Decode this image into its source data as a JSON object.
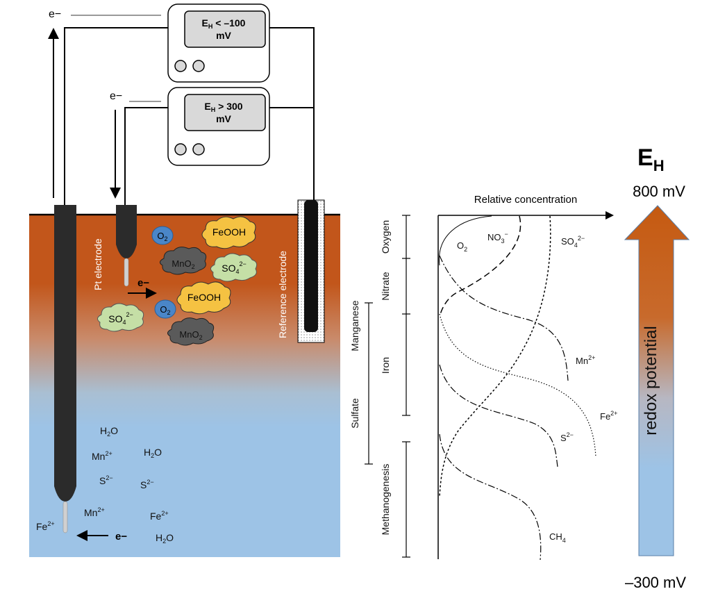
{
  "meters": {
    "top": {
      "symbol": "E",
      "subscript": "H",
      "relation": "< –100",
      "unit": "mV"
    },
    "bottom": {
      "symbol": "E",
      "subscript": "H",
      "relation": "> 300",
      "unit": "mV"
    }
  },
  "electron_label": "e−",
  "electrode_labels": {
    "pt": "Pt electrode",
    "reference": "Reference electrode"
  },
  "species_clouds": {
    "o2_a": {
      "base": "O",
      "sub": "2",
      "sup": "",
      "color": "#4a86c8"
    },
    "feooh_a": {
      "base": "FeOOH",
      "sub": "",
      "sup": "",
      "color": "#f5c242"
    },
    "mno2_a": {
      "base": "MnO",
      "sub": "2",
      "sup": "",
      "color": "#5a5a5a"
    },
    "so4_a": {
      "base": "SO",
      "sub": "4",
      "sup": "2−",
      "color": "#c5dfa6"
    },
    "o2_b": {
      "base": "O",
      "sub": "2",
      "sup": "",
      "color": "#4a86c8"
    },
    "feooh_b": {
      "base": "FeOOH",
      "sub": "",
      "sup": "",
      "color": "#f5c242"
    },
    "so4_b": {
      "base": "SO",
      "sub": "4",
      "sup": "2−",
      "color": "#c5dfa6"
    },
    "mno2_b": {
      "base": "MnO",
      "sub": "2",
      "sup": "",
      "color": "#5a5a5a"
    }
  },
  "water_species": {
    "h2o_1": {
      "base": "H",
      "sub": "2",
      "rest": "O"
    },
    "mn_1": {
      "base": "Mn",
      "sup": "2+"
    },
    "h2o_2": {
      "base": "H",
      "sub": "2",
      "rest": "O"
    },
    "s_1": {
      "base": "S",
      "sup": "2−"
    },
    "s_2": {
      "base": "S",
      "sup": "2−"
    },
    "mn_2": {
      "base": "Mn",
      "sup": "2+"
    },
    "fe_1": {
      "base": "Fe",
      "sup": "2+"
    },
    "fe_2": {
      "base": "Fe",
      "sup": "2+"
    },
    "h2o_3": {
      "base": "H",
      "sub": "2",
      "rest": "O"
    }
  },
  "colors": {
    "soil_top": "#c2561b",
    "water": "#9dc3e6",
    "electrode": "#2b2b2b",
    "arrow_top": "#c55a11",
    "arrow_bottom": "#9dc3e6"
  },
  "profile": {
    "x_axis_label": "Relative concentration",
    "zones_outer": [
      "Oxygen",
      "Nitrate",
      "Iron",
      "Methanogenesis"
    ],
    "zones_inner": [
      "Manganese",
      "Sulfate"
    ],
    "curve_labels": {
      "o2": {
        "base": "O",
        "sub": "2",
        "sup": ""
      },
      "no3": {
        "base": "NO",
        "sub": "3",
        "sup": "−"
      },
      "so4": {
        "base": "SO",
        "sub": "4",
        "sup": "2−"
      },
      "mn": {
        "base": "Mn",
        "sub": "",
        "sup": "2+"
      },
      "fe": {
        "base": "Fe",
        "sub": "",
        "sup": "2+"
      },
      "s": {
        "base": "S",
        "sub": "",
        "sup": "2−"
      },
      "ch4": {
        "base": "CH",
        "sub": "4",
        "sup": ""
      }
    }
  },
  "redox": {
    "title": {
      "base": "E",
      "sub": "H"
    },
    "top_value": "800 mV",
    "bottom_value": "–300 mV",
    "arrow_label": "redox potential"
  }
}
